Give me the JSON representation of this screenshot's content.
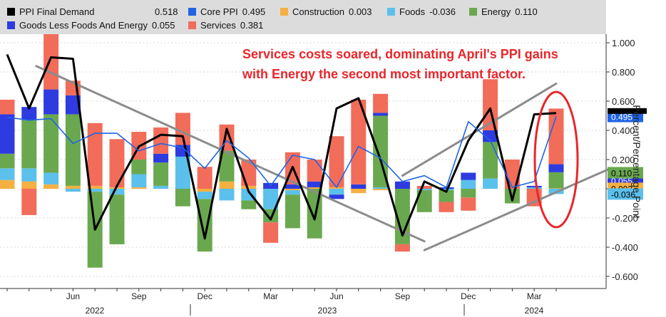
{
  "legend": {
    "values": [
      "0.518",
      "0.495",
      "0.003",
      "-0.036",
      "0.110",
      "0.055",
      "0.381"
    ]
  },
  "annotation": {
    "line1": "Services costs soared, dominating April's PPI gains",
    "line2": "with Energy the second most important factor."
  },
  "colors": {
    "ppi": "#000000",
    "core": "#1f64e5",
    "construction": "#f5b041",
    "foods": "#5bc0eb",
    "energy": "#6aa84f",
    "goods": "#2d3be0",
    "services": "#f26c5a",
    "annotation": "#e8262b",
    "trendline": "#8c8c8c",
    "oval": "#e8262b"
  },
  "chart_data": {
    "type": "bar",
    "stacked": true,
    "ylabel": "Percent/Percentage Point",
    "ylim": [
      -0.65,
      1.05
    ],
    "yticks": [
      "1.000",
      "0.800",
      "0.600",
      "0.400",
      "0.200",
      "0.000",
      "-0.200",
      "-0.400",
      "-0.600"
    ],
    "categories": [
      "2022-03",
      "2022-04",
      "2022-05",
      "2022-06",
      "2022-07",
      "2022-08",
      "2022-09",
      "2022-10",
      "2022-11",
      "2022-12",
      "2023-01",
      "2023-02",
      "2023-03",
      "2023-04",
      "2023-05",
      "2023-06",
      "2023-07",
      "2023-08",
      "2023-09",
      "2023-10",
      "2023-11",
      "2023-12",
      "2024-01",
      "2024-02",
      "2024-03",
      "2024-04"
    ],
    "x_month_labels": [
      {
        "category": "2022-06",
        "label": "Jun"
      },
      {
        "category": "2022-09",
        "label": "Sep"
      },
      {
        "category": "2022-12",
        "label": "Dec"
      },
      {
        "category": "2023-03",
        "label": "Mar"
      },
      {
        "category": "2023-06",
        "label": "Jun"
      },
      {
        "category": "2023-09",
        "label": "Sep"
      },
      {
        "category": "2023-12",
        "label": "Dec"
      },
      {
        "category": "2024-03",
        "label": "Mar"
      }
    ],
    "x_year_labels": [
      "2022",
      "2023",
      "2024"
    ],
    "last_value_tags": [
      {
        "text": "0.495",
        "value": 0.495,
        "bg": "#1f64e5",
        "fg": "#ffffff"
      },
      {
        "text": "0.055",
        "value": 0.055,
        "bg": "#2d3be0",
        "fg": "#ffffff"
      },
      {
        "text": "0.110",
        "value": 0.11,
        "bg": "#6aa84f",
        "fg": "#000000"
      },
      {
        "text": "0.003",
        "value": 0.003,
        "bg": "#f5b041",
        "fg": "#000000"
      },
      {
        "text": "-0.036",
        "value": -0.036,
        "bg": "#5bc0eb",
        "fg": "#000000"
      }
    ],
    "series": [
      {
        "name": "PPI Final Demand",
        "kind": "line",
        "color": "#000000",
        "values": [
          0.92,
          0.55,
          0.9,
          0.89,
          -0.28,
          0.02,
          0.29,
          0.37,
          0.36,
          -0.34,
          0.41,
          -0.02,
          -0.21,
          0.15,
          -0.21,
          0.55,
          0.62,
          0.2,
          -0.32,
          0.05,
          -0.02,
          0.33,
          0.55,
          -0.08,
          0.51,
          0.518
        ]
      },
      {
        "name": "Core PPI",
        "kind": "line",
        "color": "#1f64e5",
        "values": [
          0.49,
          0.47,
          0.48,
          0.31,
          0.38,
          0.38,
          0.26,
          0.31,
          0.28,
          0.14,
          0.33,
          0.21,
          0.02,
          0.23,
          0.2,
          0.01,
          0.29,
          0.21,
          0.05,
          0.09,
          0.01,
          0.46,
          0.33,
          0.01,
          0.05,
          0.495
        ]
      },
      {
        "name": "Construction",
        "kind": "bar",
        "color": "#f5b041",
        "values": [
          0.06,
          0.05,
          0.03,
          0.02,
          0.02,
          0.01,
          0.01,
          0.0,
          0.0,
          -0.02,
          0.05,
          0.02,
          0.0,
          -0.01,
          0.01,
          0.01,
          -0.03,
          -0.01,
          0.0,
          0.0,
          0.0,
          0.0,
          0.0,
          0.0,
          0.0,
          0.003
        ]
      },
      {
        "name": "Foods",
        "kind": "bar",
        "color": "#5bc0eb",
        "values": [
          0.08,
          0.09,
          0.08,
          -0.02,
          -0.02,
          -0.04,
          0.09,
          0.02,
          0.22,
          -0.05,
          -0.08,
          -0.08,
          -0.14,
          -0.03,
          0.0,
          -0.04,
          0.0,
          0.01,
          0.0,
          -0.01,
          -0.01,
          0.06,
          0.07,
          0.0,
          0.01,
          -0.036
        ]
      },
      {
        "name": "Energy",
        "kind": "bar",
        "color": "#6aa84f",
        "values": [
          0.1,
          0.33,
          0.4,
          0.49,
          -0.52,
          -0.34,
          0.1,
          0.16,
          -0.12,
          -0.36,
          0.21,
          -0.06,
          -0.09,
          -0.23,
          -0.34,
          0.0,
          0.0,
          0.49,
          -0.38,
          -0.15,
          -0.08,
          -0.06,
          0.25,
          -0.1,
          0.0,
          0.11
        ]
      },
      {
        "name": "Goods Less Foods And Energy",
        "kind": "bar",
        "color": "#2d3be0",
        "values": [
          0.27,
          0.09,
          0.17,
          0.13,
          0.0,
          0.0,
          0.0,
          0.06,
          0.08,
          0.0,
          0.0,
          0.0,
          0.04,
          0.03,
          0.04,
          -0.03,
          0.03,
          0.02,
          0.05,
          0.0,
          0.01,
          0.05,
          0.08,
          0.0,
          0.01,
          0.055
        ]
      },
      {
        "name": "Services",
        "kind": "bar",
        "color": "#f26c5a",
        "values": [
          0.1,
          -0.18,
          0.4,
          0.1,
          0.43,
          0.33,
          0.19,
          0.18,
          0.22,
          0.15,
          0.18,
          0.18,
          -0.14,
          0.22,
          0.15,
          0.35,
          0.58,
          0.13,
          -0.05,
          0.02,
          -0.07,
          -0.09,
          0.35,
          0.2,
          -0.12,
          0.381
        ]
      }
    ]
  }
}
